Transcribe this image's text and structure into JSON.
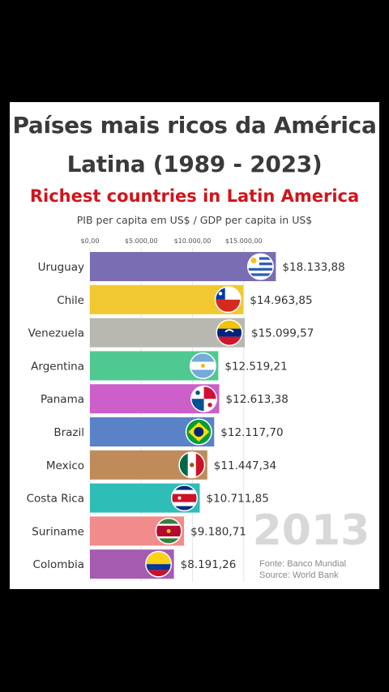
{
  "title_line1": "Países mais ricos da América",
  "title_line2": "Latina (1989 - 2023)",
  "subtitle": "Richest countries in Latin America",
  "axis_caption": "PIB per capita em US$ / GDP per capita in US$",
  "source_pt": "Fonte: Banco Mundial",
  "source_en": "Source: World Bank",
  "chart_data": {
    "type": "bar",
    "orientation": "horizontal",
    "year_label": "2013",
    "xlim": [
      0,
      20000
    ],
    "ticks": [
      0,
      5000,
      10000,
      15000
    ],
    "tick_labels": [
      "$0,00",
      "$5.000,00",
      "$10.000,00",
      "$15.000,00"
    ],
    "grid": true,
    "categories": [
      "Uruguay",
      "Chile",
      "Venezuela",
      "Argentina",
      "Panama",
      "Brazil",
      "Mexico",
      "Costa Rica",
      "Suriname",
      "Colombia"
    ],
    "values": [
      18133.88,
      14963.85,
      15099.57,
      12519.21,
      12613.38,
      12117.7,
      11447.34,
      10711.85,
      9180.71,
      8191.26
    ],
    "value_labels": [
      "$18.133,88",
      "$14.963,85",
      "$15.099,57",
      "$12.519,21",
      "$12.613,38",
      "$12.117,70",
      "$11.447,34",
      "$10.711,85",
      "$9.180,71",
      "$8.191,26"
    ],
    "colors": [
      "#7b6db3",
      "#f2c831",
      "#b8b8b0",
      "#4fc990",
      "#cc5fc9",
      "#5a82c6",
      "#c08b5a",
      "#2fbdb8",
      "#f28b8b",
      "#a55bb0"
    ],
    "flag_icons": [
      "uruguay-flag-icon",
      "chile-flag-icon",
      "venezuela-flag-icon",
      "argentina-flag-icon",
      "panama-flag-icon",
      "brazil-flag-icon",
      "mexico-flag-icon",
      "costa-rica-flag-icon",
      "suriname-flag-icon",
      "colombia-flag-icon"
    ]
  }
}
